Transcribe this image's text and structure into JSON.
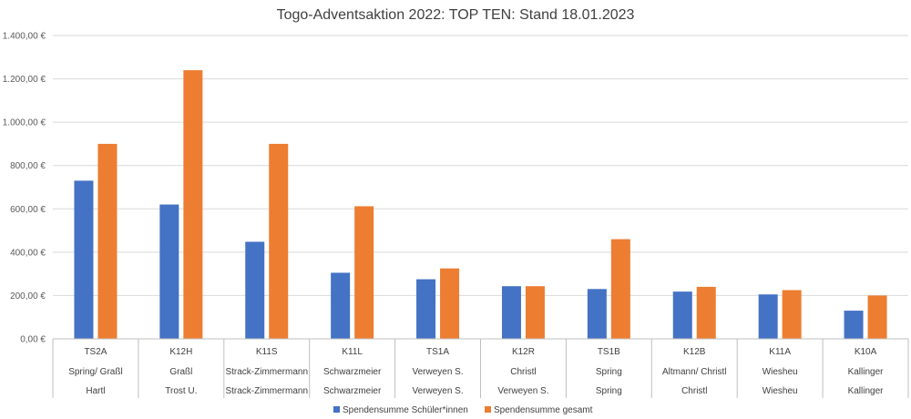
{
  "chart_data": {
    "type": "bar",
    "title": "Togo-Adventsaktion 2022: TOP TEN: Stand 18.01.2023",
    "xlabel": "",
    "ylabel": "",
    "ylim": [
      0,
      1400
    ],
    "ytick_labels": [
      "0,00 €",
      "200,00 €",
      "400,00 €",
      "600,00 €",
      "800,00 €",
      "1.000,00 €",
      "1.200,00 €",
      "1.400,00 €"
    ],
    "yticks": [
      0,
      200,
      400,
      600,
      800,
      1000,
      1200,
      1400
    ],
    "grid": true,
    "legend_position": "bottom",
    "categories": [
      {
        "l1": "TS2A",
        "l2": "Spring/ Graßl",
        "l3": "Hartl"
      },
      {
        "l1": "K12H",
        "l2": "Graßl",
        "l3": "Trost U."
      },
      {
        "l1": "K11S",
        "l2": "Strack-Zimmermann",
        "l3": "Strack-Zimmermann"
      },
      {
        "l1": "K11L",
        "l2": "Schwarzmeier",
        "l3": "Schwarzmeier"
      },
      {
        "l1": "TS1A",
        "l2": "Verweyen S.",
        "l3": "Verweyen S."
      },
      {
        "l1": "K12R",
        "l2": "Christl",
        "l3": "Verweyen S."
      },
      {
        "l1": "TS1B",
        "l2": "Spring",
        "l3": "Spring"
      },
      {
        "l1": "K12B",
        "l2": "Altmann/ Christl",
        "l3": "Christl"
      },
      {
        "l1": "K11A",
        "l2": "Wiesheu",
        "l3": "Wiesheu"
      },
      {
        "l1": "K10A",
        "l2": "Kallinger",
        "l3": "Kallinger"
      }
    ],
    "series": [
      {
        "name": "Spendensumme Schüler*innen",
        "color": "#4472c4",
        "values": [
          730,
          620,
          448,
          305,
          275,
          243,
          230,
          218,
          205,
          130
        ]
      },
      {
        "name": "Spendensumme gesamt",
        "color": "#ed7d31",
        "values": [
          900,
          1240,
          900,
          612,
          325,
          243,
          460,
          240,
          225,
          200
        ]
      }
    ]
  }
}
